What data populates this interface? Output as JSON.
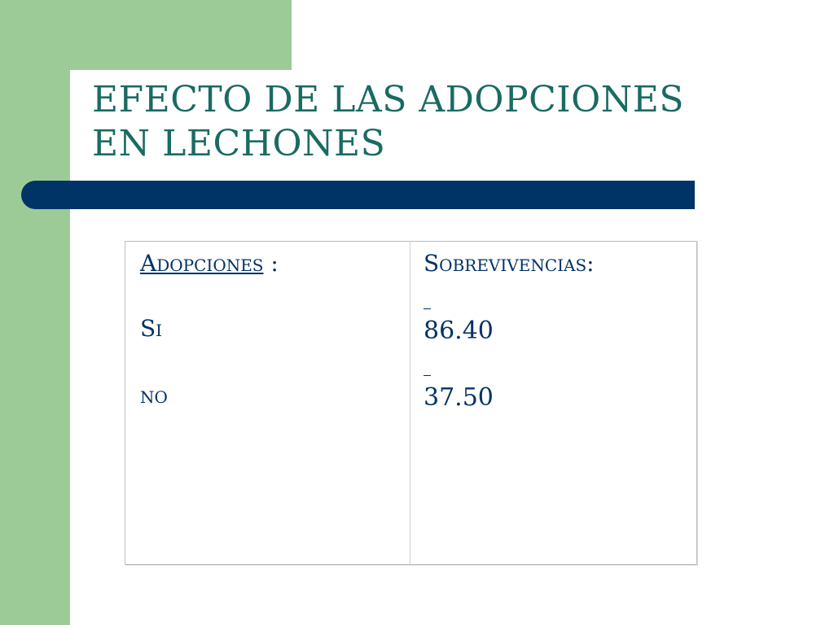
{
  "slide": {
    "title_line1": "EFECTO DE LAS ADOPCIONES",
    "title_line2": "EN LECHONES"
  },
  "table": {
    "left_header_underlined": "Adopciones",
    "left_header_suffix": " :",
    "right_header": "Sobrevivencias:",
    "rows": [
      {
        "label": "Si",
        "value": "86.40"
      },
      {
        "label": "no",
        "value": "37.50"
      }
    ]
  },
  "colors": {
    "accent_green": "#9ccb98",
    "title_teal": "#1a6b62",
    "navy": "#003366"
  }
}
